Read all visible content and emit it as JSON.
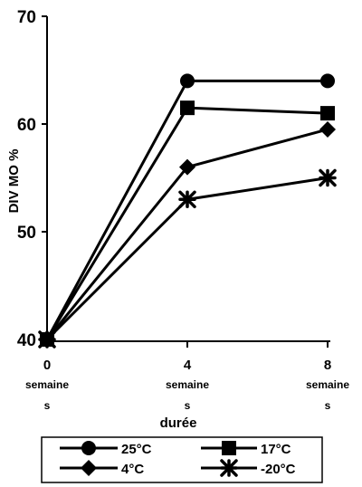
{
  "chart_data": {
    "type": "line",
    "x": [
      0,
      4,
      8
    ],
    "x_tick_labels": [
      {
        "value": "0",
        "lines": [
          "semaine",
          "s"
        ]
      },
      {
        "value": "4",
        "lines": [
          "semaine",
          "s"
        ]
      },
      {
        "value": "8",
        "lines": [
          "semaine",
          "s"
        ]
      }
    ],
    "xlabel": "durée",
    "ylabel": "DIV MO %",
    "ylim": [
      40,
      70
    ],
    "y_ticks": [
      40,
      50,
      60,
      70
    ],
    "grid": false,
    "legend_placement": "bottom",
    "series": [
      {
        "name": "25°C",
        "marker": "circle",
        "values": [
          40,
          64,
          64
        ]
      },
      {
        "name": "17°C",
        "marker": "square",
        "values": [
          40,
          61.5,
          61
        ]
      },
      {
        "name": "4°C",
        "marker": "diamond",
        "values": [
          40,
          56,
          59.5
        ]
      },
      {
        "name": "-20°C",
        "marker": "asterisk",
        "values": [
          40,
          53,
          55
        ]
      }
    ],
    "colors": {
      "line": "#000000",
      "marker": "#000000"
    }
  }
}
